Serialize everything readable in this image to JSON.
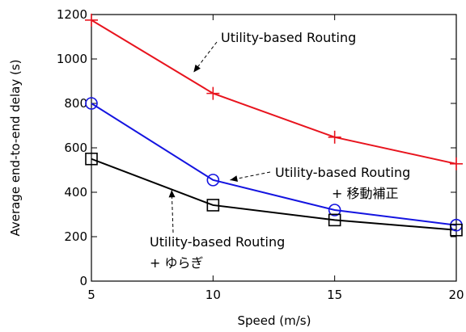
{
  "chart_data": {
    "type": "line",
    "title": "",
    "xlabel": "Speed (m/s)",
    "ylabel": "Average end-to-end delay (s)",
    "xlim": [
      5,
      20
    ],
    "ylim": [
      0,
      1200
    ],
    "x_ticks": [
      5,
      10,
      15,
      20
    ],
    "y_ticks": [
      0,
      200,
      400,
      600,
      800,
      1000,
      1200
    ],
    "grid": false,
    "legend": "none",
    "x": [
      5,
      10,
      15,
      20
    ],
    "series": [
      {
        "id": "utility",
        "color": "#e8141e",
        "marker": "plus",
        "values": [
          1175,
          845,
          648,
          528
        ]
      },
      {
        "id": "mobility",
        "color": "#1414e0",
        "marker": "circle",
        "values": [
          800,
          455,
          320,
          252
        ]
      },
      {
        "id": "yuragi",
        "color": "#000000",
        "marker": "square",
        "values": [
          550,
          342,
          275,
          230
        ]
      }
    ],
    "annotations": [
      {
        "id": "ann-utility",
        "lines": [
          "Utility-based Routing"
        ],
        "points_to": {
          "x": 9.2,
          "y": 940
        }
      },
      {
        "id": "ann-mobility",
        "lines": [
          "Utility-based Routing",
          "+ 移動補正"
        ],
        "points_to": {
          "x": 10.7,
          "y": 455
        }
      },
      {
        "id": "ann-yuragi",
        "lines": [
          "Utility-based Routing",
          "+ ゆらぎ"
        ],
        "points_to": {
          "x": 8.3,
          "y": 410
        }
      }
    ]
  }
}
